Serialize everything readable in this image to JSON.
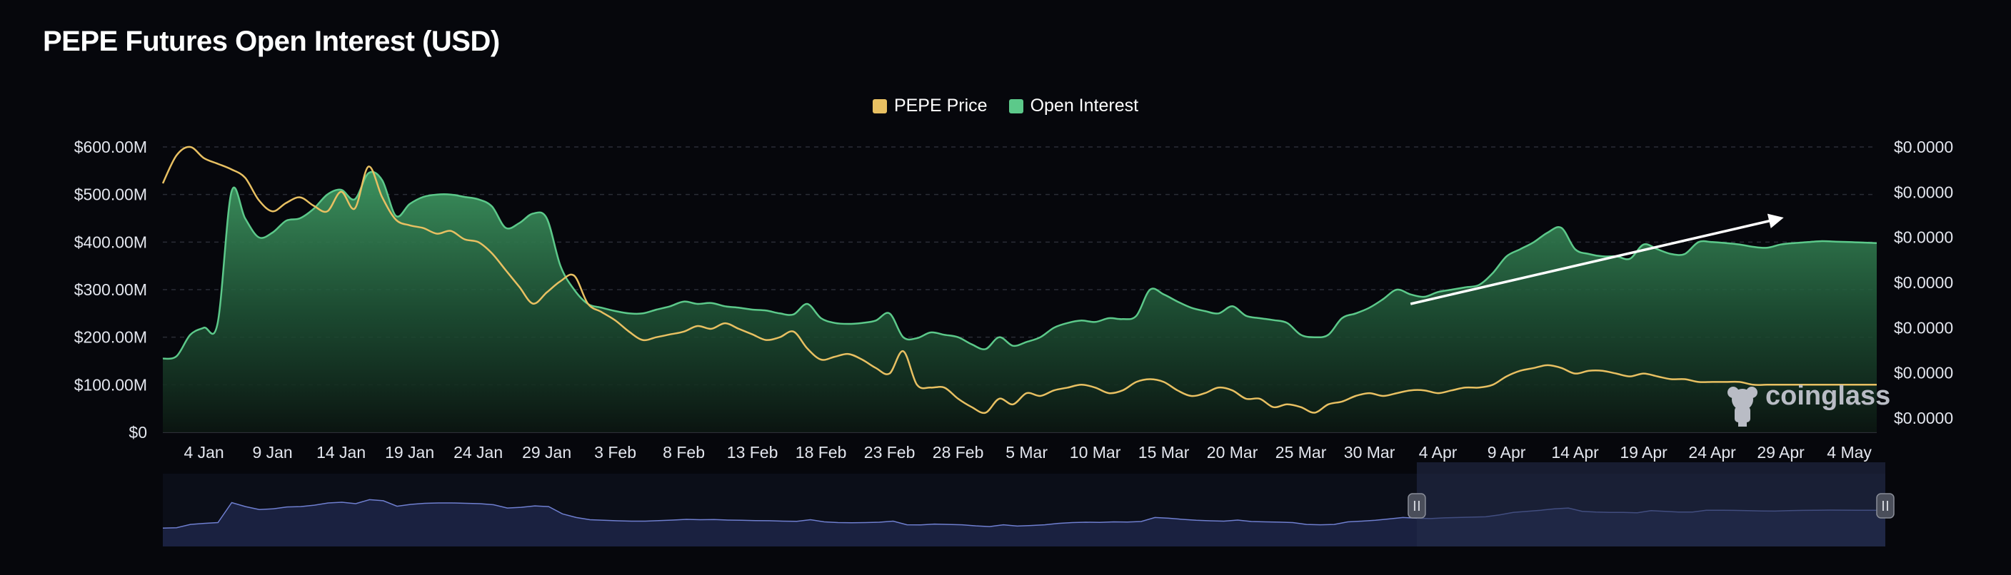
{
  "title": "PEPE Futures Open Interest (USD)",
  "watermark": "coinglass",
  "colors": {
    "background": "#06070c",
    "price": "#e8c062",
    "open_interest": "#5cc98a",
    "open_interest_fill_top": "#3f9a63",
    "navigator_line": "#6f7fd0",
    "navigator_fill": "#1a2140",
    "navigator_window": "#232b49",
    "arrow": "#ffffff",
    "grid": "#2a2d36"
  },
  "icons": {
    "watermark_logo": "frog-mascot-icon",
    "navigator_handle": "grip-handle-icon"
  },
  "chart_data": {
    "type": "area",
    "title": "PEPE Futures Open Interest (USD)",
    "legend_position": "top-center",
    "grid": true,
    "x_ticks": [
      "4 Jan",
      "9 Jan",
      "14 Jan",
      "19 Jan",
      "24 Jan",
      "29 Jan",
      "3 Feb",
      "8 Feb",
      "13 Feb",
      "18 Feb",
      "23 Feb",
      "28 Feb",
      "5 Mar",
      "10 Mar",
      "15 Mar",
      "20 Mar",
      "25 Mar",
      "30 Mar",
      "4 Apr",
      "9 Apr",
      "14 Apr",
      "19 Apr",
      "24 Apr",
      "29 Apr",
      "4 May"
    ],
    "y_left": {
      "ticks": [
        "$0",
        "$100.00M",
        "$200.00M",
        "$300.00M",
        "$400.00M",
        "$500.00M",
        "$600.00M"
      ],
      "range": [
        0,
        600
      ]
    },
    "y_right": {
      "ticks": [
        "$0.0000",
        "$0.0000",
        "$0.0000",
        "$0.0000",
        "$0.0000",
        "$0.0000",
        "$0.0000"
      ],
      "price_display_range": [
        5.6e-06,
        1.58e-05
      ]
    },
    "series": [
      {
        "name": "Open Interest",
        "axis": "left",
        "unit": "USD millions",
        "days": [
          0,
          1,
          2,
          3,
          4,
          5,
          6,
          7,
          8,
          9,
          10,
          11,
          12,
          13,
          14,
          15,
          16,
          17,
          18,
          19,
          20,
          21,
          22,
          23,
          24,
          25,
          26,
          27,
          28,
          29,
          30,
          31,
          32,
          33,
          34,
          35,
          36,
          37,
          38,
          39,
          40,
          41,
          42,
          43,
          44,
          45,
          46,
          47,
          48,
          49,
          50,
          51,
          52,
          53,
          54,
          55,
          56,
          57,
          58,
          59,
          60,
          61,
          62,
          63,
          64,
          65,
          66,
          67,
          68,
          69,
          70,
          71,
          72,
          73,
          74,
          75,
          76,
          77,
          78,
          79,
          80,
          81,
          82,
          83,
          84,
          85,
          86,
          87,
          88,
          89,
          90,
          91,
          92,
          93,
          94,
          95,
          96,
          97,
          98,
          99,
          100,
          101,
          102,
          103,
          104,
          105,
          106,
          107,
          108,
          109,
          110,
          111,
          112,
          113,
          114,
          115,
          116,
          117,
          118,
          119,
          120,
          121,
          122,
          123,
          124,
          125
        ],
        "values": [
          155,
          160,
          205,
          220,
          230,
          505,
          450,
          410,
          420,
          445,
          450,
          470,
          500,
          510,
          490,
          545,
          530,
          455,
          480,
          495,
          500,
          500,
          495,
          490,
          475,
          430,
          440,
          460,
          450,
          350,
          300,
          270,
          262,
          255,
          250,
          250,
          258,
          265,
          275,
          270,
          272,
          265,
          262,
          258,
          256,
          250,
          248,
          270,
          240,
          230,
          228,
          230,
          235,
          250,
          200,
          198,
          210,
          205,
          200,
          185,
          175,
          200,
          182,
          190,
          200,
          220,
          230,
          235,
          232,
          240,
          238,
          245,
          300,
          290,
          275,
          262,
          255,
          250,
          265,
          245,
          240,
          236,
          230,
          205,
          200,
          205,
          240,
          250,
          262,
          280,
          300,
          290,
          285,
          295,
          300,
          305,
          310,
          335,
          370,
          385,
          400,
          420,
          430,
          385,
          375,
          370,
          370,
          365,
          395,
          385,
          375,
          375,
          400,
          400,
          398,
          395,
          390,
          388,
          395,
          398,
          400,
          402,
          401,
          400,
          399,
          398
        ]
      },
      {
        "name": "PEPE Price",
        "axis": "right",
        "unit": "USD",
        "days": [
          0,
          1,
          2,
          3,
          4,
          5,
          6,
          7,
          8,
          9,
          10,
          11,
          12,
          13,
          14,
          15,
          16,
          17,
          18,
          19,
          20,
          21,
          22,
          23,
          24,
          25,
          26,
          27,
          28,
          29,
          30,
          31,
          32,
          33,
          34,
          35,
          36,
          37,
          38,
          39,
          40,
          41,
          42,
          43,
          44,
          45,
          46,
          47,
          48,
          49,
          50,
          51,
          52,
          53,
          54,
          55,
          56,
          57,
          58,
          59,
          60,
          61,
          62,
          63,
          64,
          65,
          66,
          67,
          68,
          69,
          70,
          71,
          72,
          73,
          74,
          75,
          76,
          77,
          78,
          79,
          80,
          81,
          82,
          83,
          84,
          85,
          86,
          87,
          88,
          89,
          90,
          91,
          92,
          93,
          94,
          95,
          96,
          97,
          98,
          99,
          100,
          101,
          102,
          103,
          104,
          105,
          106,
          107,
          108,
          109,
          110,
          111,
          112,
          113,
          114,
          115,
          116,
          117,
          118,
          119,
          120,
          121,
          122,
          123,
          124,
          125
        ],
        "values": [
          1.45e-05,
          1.55e-05,
          1.58e-05,
          1.54e-05,
          1.52e-05,
          1.5e-05,
          1.47e-05,
          1.39e-05,
          1.35e-05,
          1.38e-05,
          1.4e-05,
          1.37e-05,
          1.35e-05,
          1.42e-05,
          1.36e-05,
          1.51e-05,
          1.4e-05,
          1.32e-05,
          1.3e-05,
          1.29e-05,
          1.27e-05,
          1.28e-05,
          1.25e-05,
          1.24e-05,
          1.2e-05,
          1.14e-05,
          1.08e-05,
          1.02e-05,
          1.06e-05,
          1.1e-05,
          1.12e-05,
          1.02e-05,
          9.9e-06,
          9.6e-06,
          9.2e-06,
          8.9e-06,
          9e-06,
          9.1e-06,
          9.2e-06,
          9.4e-06,
          9.3e-06,
          9.5e-06,
          9.3e-06,
          9.1e-06,
          8.9e-06,
          9e-06,
          9.2e-06,
          8.6e-06,
          8.2e-06,
          8.3e-06,
          8.4e-06,
          8.2e-06,
          7.9e-06,
          7.7e-06,
          8.5e-06,
          7.3e-06,
          7.2e-06,
          7.2e-06,
          6.8e-06,
          6.5e-06,
          6.3e-06,
          6.8e-06,
          6.6e-06,
          7e-06,
          6.9e-06,
          7.1e-06,
          7.2e-06,
          7.3e-06,
          7.2e-06,
          7e-06,
          7.1e-06,
          7.4e-06,
          7.5e-06,
          7.4e-06,
          7.1e-06,
          6.9e-06,
          7e-06,
          7.2e-06,
          7.1e-06,
          6.8e-06,
          6.8e-06,
          6.5e-06,
          6.6e-06,
          6.5e-06,
          6.3e-06,
          6.6e-06,
          6.7e-06,
          6.9e-06,
          7e-06,
          6.9e-06,
          7e-06,
          7.1e-06,
          7.1e-06,
          7e-06,
          7.1e-06,
          7.2e-06,
          7.2e-06,
          7.3e-06,
          7.6e-06,
          7.8e-06,
          7.9e-06,
          8e-06,
          7.9e-06,
          7.7e-06,
          7.8e-06,
          7.8e-06,
          7.7e-06,
          7.6e-06,
          7.7e-06,
          7.6e-06,
          7.5e-06,
          7.5e-06,
          7.4e-06,
          7.4e-06,
          7.4e-06,
          7.4e-06,
          7.3e-06,
          7.3e-06,
          7.3e-06,
          7.3e-06,
          7.3e-06,
          7.3e-06,
          7.3e-06,
          7.3e-06,
          7.3e-06,
          7.3e-06
        ]
      }
    ],
    "annotations": [
      {
        "type": "arrow",
        "from": {
          "day": 91,
          "value": 270
        },
        "to": {
          "day": 118,
          "value": 450
        }
      }
    ],
    "navigator": {
      "series": "Open Interest",
      "selected_range_days": [
        91,
        125
      ]
    }
  }
}
